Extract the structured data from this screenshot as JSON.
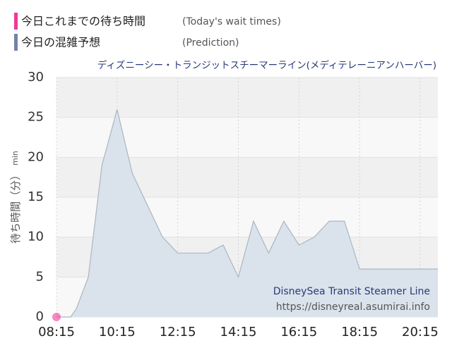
{
  "chart_data": {
    "type": "area",
    "title": "ディズニーシー・トランジットスチーマーライン(メディテレーニアンハーバー)",
    "y_label": "待ち時間（分）",
    "y_unit": "min",
    "annotations": [
      "DisneySea Transit Steamer Line",
      "https://disneyreal.asumirai.info"
    ],
    "xlim": [
      "08:15",
      "20:50"
    ],
    "xticks": [
      "08:15",
      "10:15",
      "12:15",
      "14:15",
      "16:15",
      "18:15",
      "20:15"
    ],
    "ylim": [
      0,
      30
    ],
    "yticks": [
      0,
      5,
      10,
      15,
      20,
      25,
      30
    ],
    "grid": true,
    "series": [
      {
        "name": "今日これまでの待ち時間",
        "name_en": "(Today's wait times)",
        "color": "#f0389a",
        "style": "points",
        "x": [
          "08:15"
        ],
        "values": [
          0
        ]
      },
      {
        "name": "今日の混雑予想",
        "name_en": "(Prediction)",
        "color": "#7383a8",
        "fill": "#dae3eb",
        "stroke": "#aab6c2",
        "style": "area",
        "x": [
          "08:15",
          "08:43",
          "08:54",
          "09:18",
          "09:45",
          "10:15",
          "10:45",
          "11:15",
          "11:45",
          "12:15",
          "12:45",
          "13:15",
          "13:45",
          "14:15",
          "14:45",
          "15:15",
          "15:45",
          "16:15",
          "16:45",
          "17:15",
          "17:45",
          "18:15",
          "18:45",
          "20:50"
        ],
        "values": [
          0,
          0,
          1,
          5,
          19,
          26,
          18,
          14,
          10,
          8,
          8,
          8,
          9,
          5,
          12,
          8,
          12,
          9,
          10,
          12,
          12,
          6,
          6,
          6
        ]
      }
    ]
  }
}
